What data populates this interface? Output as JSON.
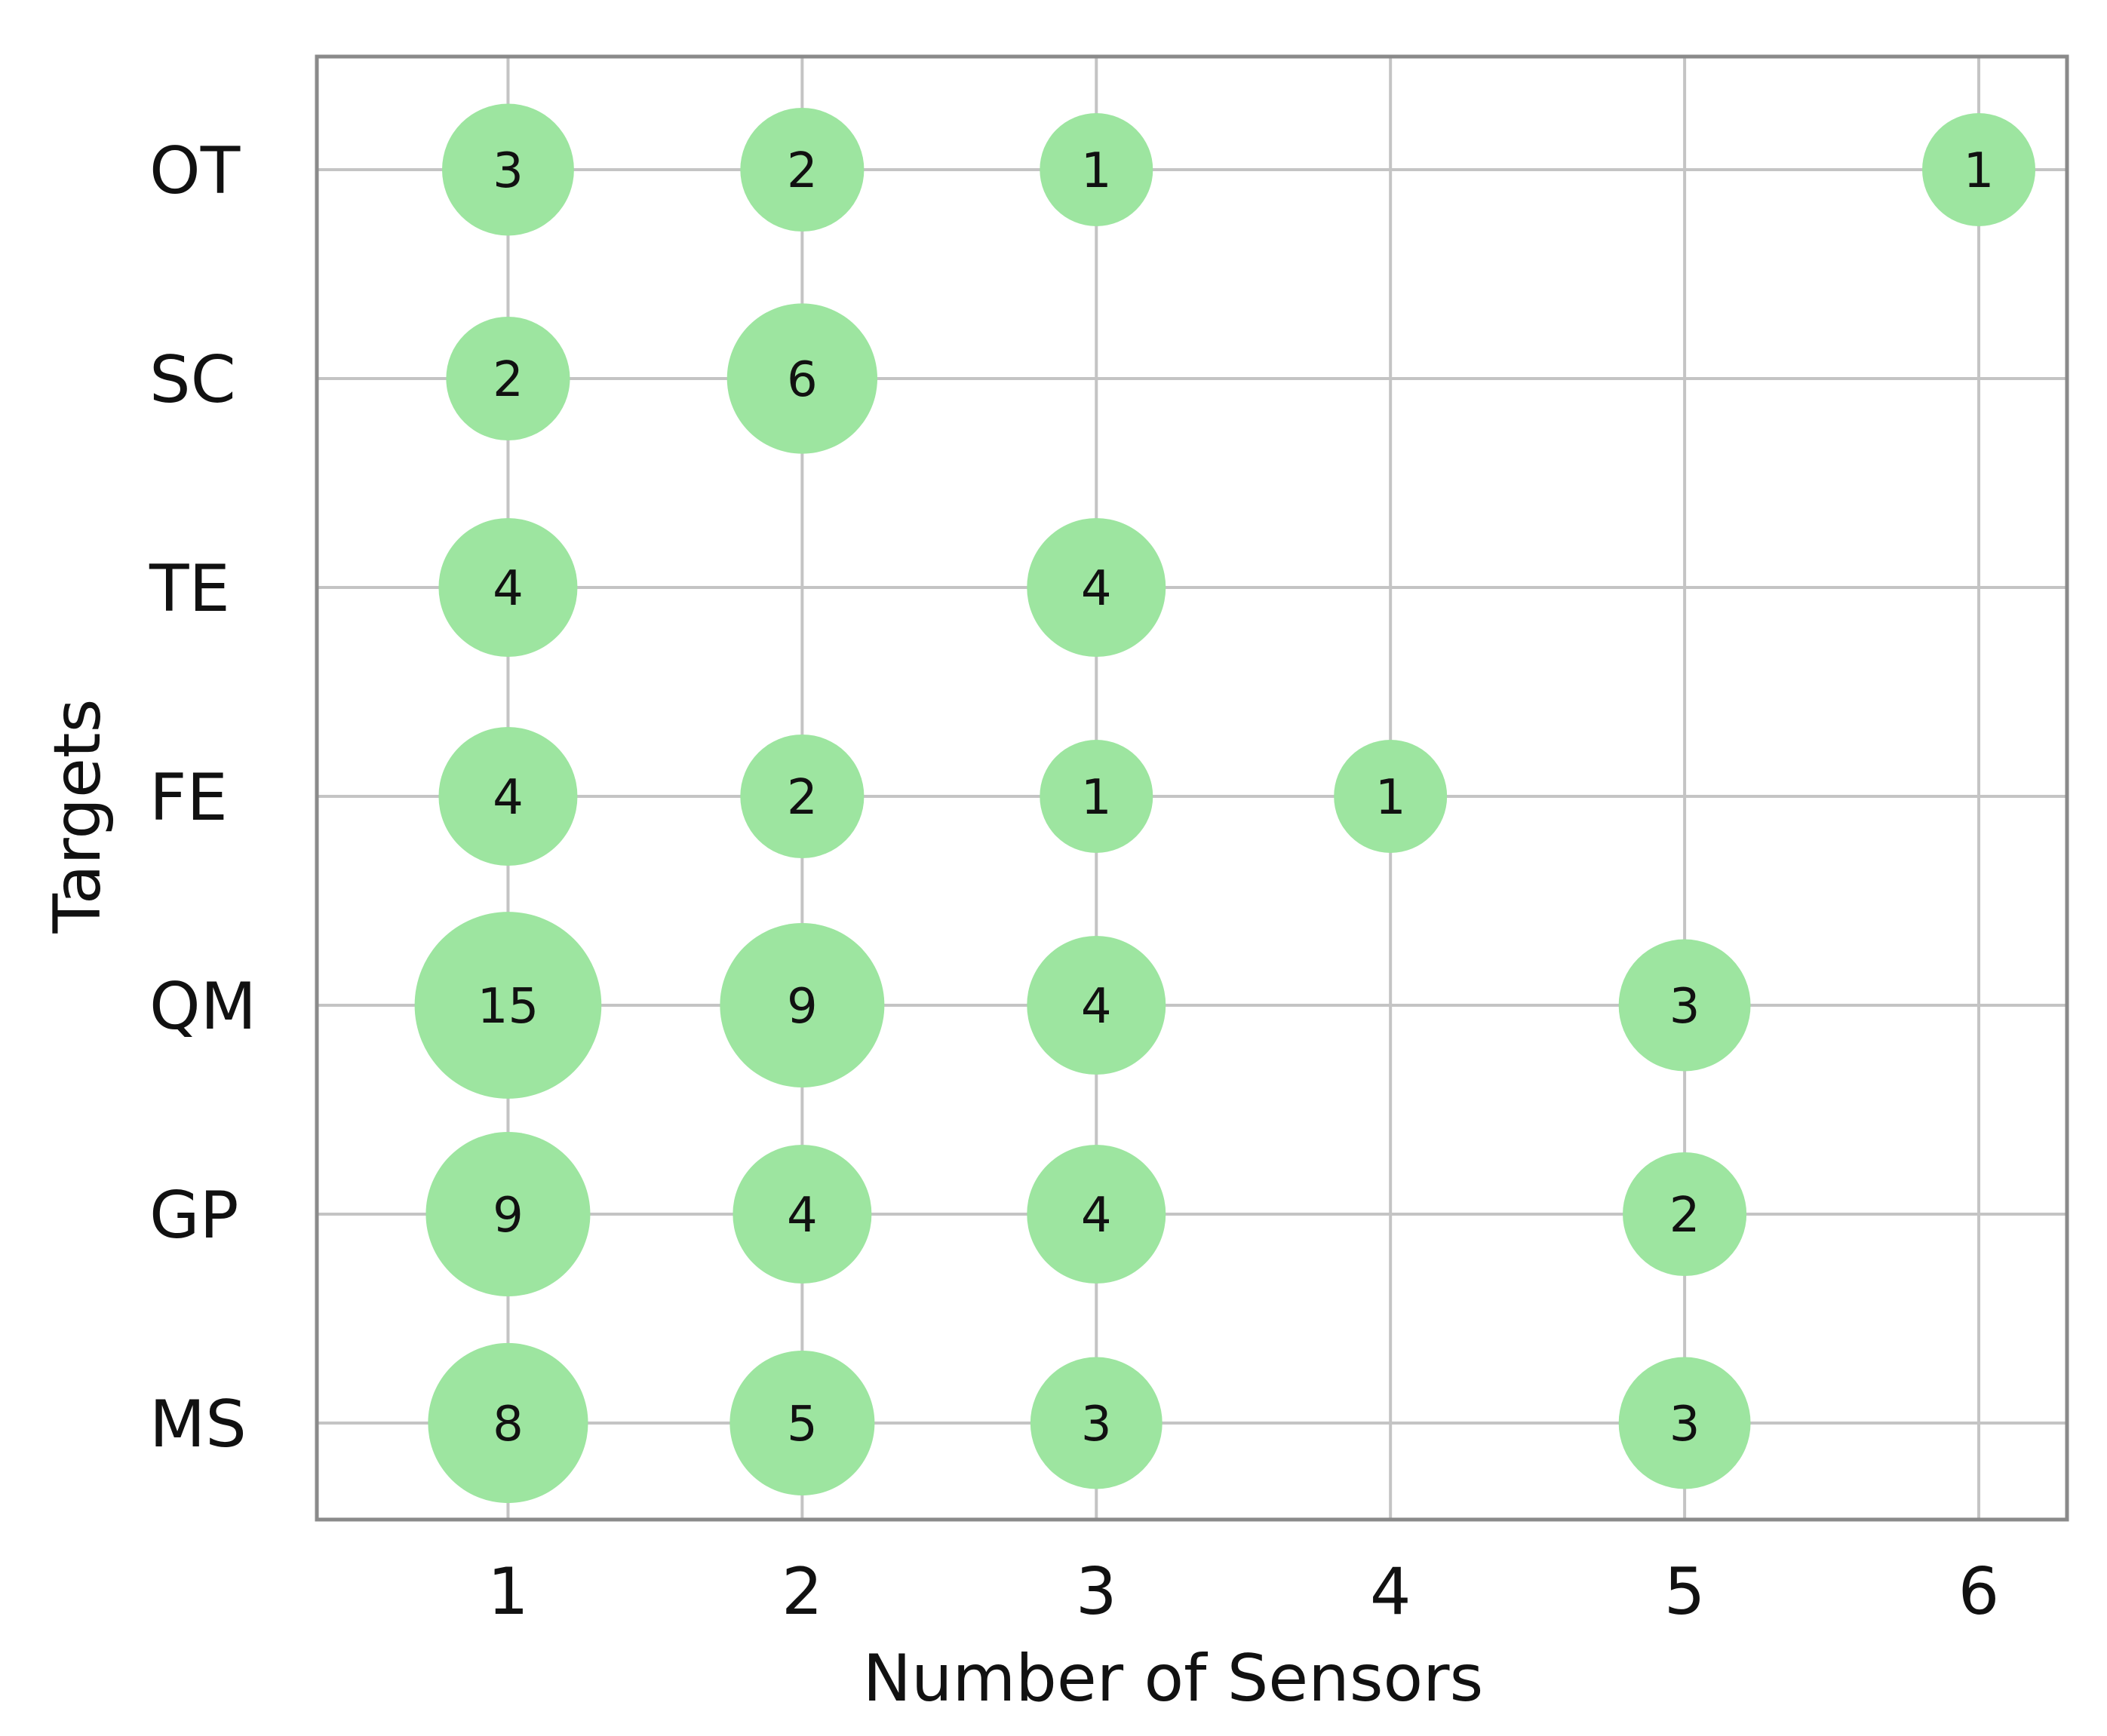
{
  "chart_data": {
    "type": "scatter",
    "title": "",
    "xlabel": "Number of Sensors",
    "ylabel": "Targets",
    "x_ticks": [
      "1",
      "2",
      "3",
      "4",
      "5",
      "6"
    ],
    "y_categories": [
      "OT",
      "SC",
      "TE",
      "FE",
      "QM",
      "GP",
      "MS"
    ],
    "xlim": [
      0.35,
      6.3
    ],
    "grid": true,
    "legend": "none",
    "colors": {
      "bubble": "#9de5a0",
      "grid": "#c4c4c4",
      "frame": "#8a8a8a"
    },
    "points": [
      {
        "target": "OT",
        "sensors": 1,
        "count": 3,
        "label": "3"
      },
      {
        "target": "OT",
        "sensors": 2,
        "count": 2,
        "label": "2"
      },
      {
        "target": "OT",
        "sensors": 3,
        "count": 1,
        "label": "1"
      },
      {
        "target": "OT",
        "sensors": 6,
        "count": 1,
        "label": "1"
      },
      {
        "target": "SC",
        "sensors": 1,
        "count": 2,
        "label": "2"
      },
      {
        "target": "SC",
        "sensors": 2,
        "count": 6,
        "label": "6"
      },
      {
        "target": "TE",
        "sensors": 1,
        "count": 4,
        "label": "4"
      },
      {
        "target": "TE",
        "sensors": 3,
        "count": 4,
        "label": "4"
      },
      {
        "target": "FE",
        "sensors": 1,
        "count": 4,
        "label": "4"
      },
      {
        "target": "FE",
        "sensors": 2,
        "count": 2,
        "label": "2"
      },
      {
        "target": "FE",
        "sensors": 3,
        "count": 1,
        "label": "1"
      },
      {
        "target": "FE",
        "sensors": 4,
        "count": 1,
        "label": "1"
      },
      {
        "target": "QM",
        "sensors": 1,
        "count": 15,
        "label": "15"
      },
      {
        "target": "QM",
        "sensors": 2,
        "count": 9,
        "label": "9"
      },
      {
        "target": "QM",
        "sensors": 3,
        "count": 4,
        "label": "4"
      },
      {
        "target": "QM",
        "sensors": 5,
        "count": 3,
        "label": "3"
      },
      {
        "target": "GP",
        "sensors": 1,
        "count": 9,
        "label": "9"
      },
      {
        "target": "GP",
        "sensors": 2,
        "count": 4,
        "label": "4"
      },
      {
        "target": "GP",
        "sensors": 3,
        "count": 4,
        "label": "4"
      },
      {
        "target": "GP",
        "sensors": 5,
        "count": 2,
        "label": "2"
      },
      {
        "target": "MS",
        "sensors": 1,
        "count": 8,
        "label": "8"
      },
      {
        "target": "MS",
        "sensors": 2,
        "count": 5,
        "label": "5"
      },
      {
        "target": "MS",
        "sensors": 3,
        "count": 3,
        "label": "3"
      },
      {
        "target": "MS",
        "sensors": 5,
        "count": 3,
        "label": "3"
      }
    ]
  }
}
